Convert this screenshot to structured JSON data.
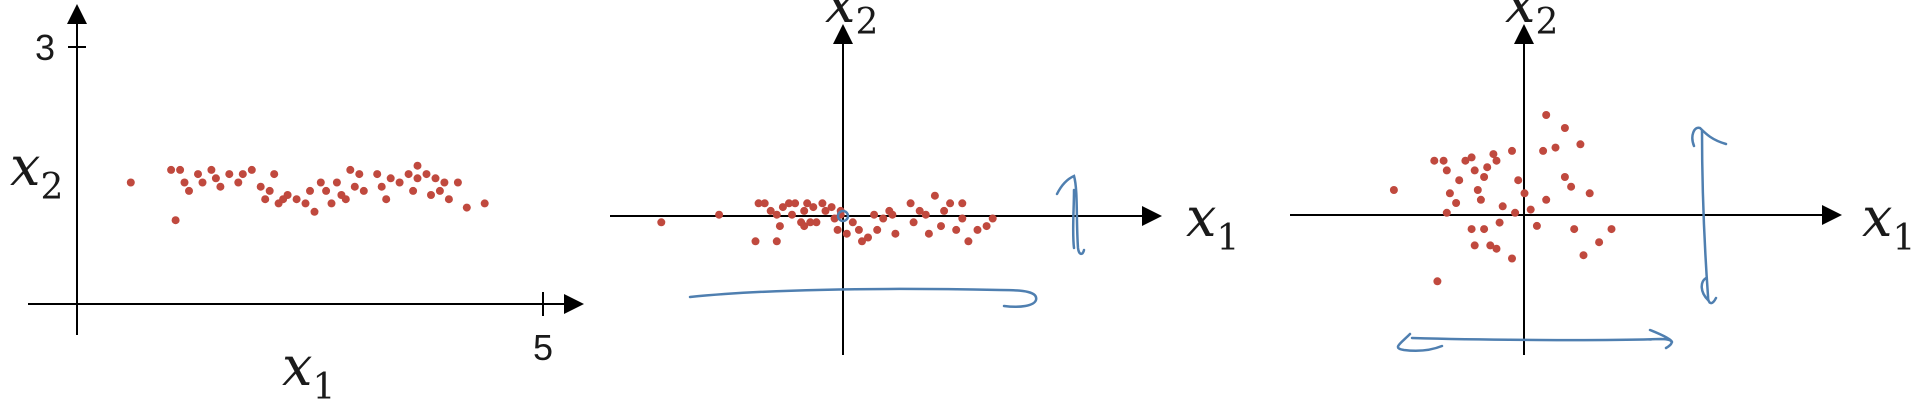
{
  "colors": {
    "point": "#c0493e",
    "axis": "#000000",
    "annotation": "#4f7fb0"
  },
  "chart_data": [
    {
      "type": "scatter",
      "title": "",
      "xlabel": {
        "base": "x",
        "sub": "1"
      },
      "ylabel": {
        "base": "x",
        "sub": "2"
      },
      "x_tick_labels": [
        "5"
      ],
      "y_tick_labels": [
        "3"
      ],
      "xlim": [
        0,
        5.2
      ],
      "ylim": [
        0,
        3.15
      ],
      "points": [
        [
          0.6,
          1.45
        ],
        [
          1.05,
          1.6
        ],
        [
          1.15,
          1.6
        ],
        [
          1.2,
          1.45
        ],
        [
          1.25,
          1.35
        ],
        [
          1.35,
          1.55
        ],
        [
          1.4,
          1.45
        ],
        [
          1.5,
          1.6
        ],
        [
          1.55,
          1.5
        ],
        [
          1.6,
          1.4
        ],
        [
          1.7,
          1.55
        ],
        [
          1.8,
          1.45
        ],
        [
          1.85,
          1.55
        ],
        [
          1.95,
          1.6
        ],
        [
          2.05,
          1.4
        ],
        [
          2.1,
          1.25
        ],
        [
          2.15,
          1.35
        ],
        [
          2.2,
          1.55
        ],
        [
          2.25,
          1.2
        ],
        [
          2.35,
          1.3
        ],
        [
          2.45,
          1.25
        ],
        [
          2.55,
          1.2
        ],
        [
          2.6,
          1.35
        ],
        [
          2.65,
          1.1
        ],
        [
          2.72,
          1.45
        ],
        [
          2.78,
          1.35
        ],
        [
          2.84,
          1.2
        ],
        [
          2.9,
          1.45
        ],
        [
          2.95,
          1.3
        ],
        [
          3.0,
          1.25
        ],
        [
          3.05,
          1.6
        ],
        [
          3.1,
          1.4
        ],
        [
          3.15,
          1.55
        ],
        [
          3.2,
          1.35
        ],
        [
          3.35,
          1.55
        ],
        [
          3.4,
          1.4
        ],
        [
          3.45,
          1.25
        ],
        [
          3.5,
          1.5
        ],
        [
          3.6,
          1.45
        ],
        [
          3.7,
          1.55
        ],
        [
          3.75,
          1.35
        ],
        [
          3.8,
          1.65
        ],
        [
          3.9,
          1.55
        ],
        [
          3.95,
          1.3
        ],
        [
          4.0,
          1.5
        ],
        [
          4.05,
          1.35
        ],
        [
          4.15,
          1.25
        ],
        [
          4.25,
          1.45
        ],
        [
          4.35,
          1.15
        ],
        [
          1.1,
          1.0
        ],
        [
          2.3,
          1.25
        ],
        [
          3.8,
          1.5
        ],
        [
          4.1,
          1.45
        ],
        [
          4.55,
          1.2
        ]
      ]
    },
    {
      "type": "scatter",
      "title": "",
      "xlabel": {
        "base": "x",
        "sub": "1"
      },
      "ylabel": {
        "base": "x",
        "sub": "2"
      },
      "x_tick_labels": [],
      "y_tick_labels": [],
      "xlim": [
        -3.2,
        4.2
      ],
      "ylim": [
        -1.6,
        2.35
      ],
      "points": [
        [
          -2.85,
          -0.05
        ],
        [
          -1.9,
          0.05
        ],
        [
          -1.25,
          0.2
        ],
        [
          -1.15,
          0.2
        ],
        [
          -1.05,
          0.1
        ],
        [
          -0.95,
          0.05
        ],
        [
          -0.9,
          -0.1
        ],
        [
          -0.85,
          0.15
        ],
        [
          -0.75,
          0.2
        ],
        [
          -0.7,
          0.05
        ],
        [
          -0.65,
          0.2
        ],
        [
          -0.55,
          -0.05
        ],
        [
          -0.5,
          0.1
        ],
        [
          -0.45,
          0.2
        ],
        [
          -0.35,
          0.15
        ],
        [
          -0.3,
          -0.05
        ],
        [
          -0.2,
          0.2
        ],
        [
          -0.15,
          0.1
        ],
        [
          -0.05,
          0.15
        ],
        [
          0.0,
          0.0
        ],
        [
          0.05,
          -0.15
        ],
        [
          0.1,
          0.1
        ],
        [
          0.2,
          -0.2
        ],
        [
          0.3,
          -0.05
        ],
        [
          0.4,
          -0.15
        ],
        [
          0.45,
          -0.3
        ],
        [
          0.55,
          -0.25
        ],
        [
          0.65,
          0.05
        ],
        [
          0.7,
          -0.15
        ],
        [
          0.8,
          0.0
        ],
        [
          0.9,
          0.1
        ],
        [
          1.0,
          -0.2
        ],
        [
          1.25,
          0.2
        ],
        [
          1.3,
          -0.05
        ],
        [
          1.4,
          0.1
        ],
        [
          1.5,
          0.05
        ],
        [
          1.55,
          -0.2
        ],
        [
          1.65,
          0.3
        ],
        [
          1.8,
          0.1
        ],
        [
          1.9,
          0.2
        ],
        [
          2.0,
          -0.15
        ],
        [
          2.1,
          0.0
        ],
        [
          2.2,
          -0.3
        ],
        [
          2.35,
          -0.15
        ],
        [
          2.5,
          -0.1
        ],
        [
          2.6,
          0.0
        ],
        [
          2.1,
          0.2
        ],
        [
          -1.3,
          -0.3
        ],
        [
          -0.95,
          -0.3
        ],
        [
          -0.4,
          -0.05
        ],
        [
          0.95,
          0.05
        ],
        [
          1.75,
          -0.1
        ],
        [
          -0.5,
          -0.1
        ],
        [
          0.1,
          0.05
        ]
      ]
    },
    {
      "type": "scatter",
      "title": "",
      "xlabel": {
        "base": "x",
        "sub": "1"
      },
      "ylabel": {
        "base": "x",
        "sub": "2"
      },
      "x_tick_labels": [],
      "y_tick_labels": [],
      "xlim": [
        -3.2,
        4.2
      ],
      "ylim": [
        -2.0,
        2.6
      ],
      "points": [
        [
          -1.85,
          0.3
        ],
        [
          -1.2,
          0.75
        ],
        [
          -1.05,
          0.75
        ],
        [
          -1.0,
          0.6
        ],
        [
          -0.95,
          0.25
        ],
        [
          -0.85,
          0.1
        ],
        [
          -0.8,
          0.45
        ],
        [
          -0.7,
          0.75
        ],
        [
          -0.6,
          0.8
        ],
        [
          -0.55,
          0.6
        ],
        [
          -0.5,
          0.3
        ],
        [
          -0.4,
          0.5
        ],
        [
          -0.35,
          0.65
        ],
        [
          -0.2,
          0.75
        ],
        [
          -0.1,
          0.05
        ],
        [
          0.05,
          0.9
        ],
        [
          0.15,
          0.45
        ],
        [
          0.25,
          0.25
        ],
        [
          0.35,
          0.0
        ],
        [
          0.45,
          -0.25
        ],
        [
          0.55,
          0.9
        ],
        [
          0.6,
          0.15
        ],
        [
          0.75,
          0.95
        ],
        [
          0.9,
          0.5
        ],
        [
          1.0,
          0.35
        ],
        [
          1.05,
          -0.3
        ],
        [
          1.15,
          1.0
        ],
        [
          1.2,
          -0.7
        ],
        [
          1.3,
          0.25
        ],
        [
          1.45,
          -0.5
        ],
        [
          1.65,
          -0.3
        ],
        [
          -0.6,
          -0.3
        ],
        [
          -0.55,
          -0.55
        ],
        [
          -0.4,
          -0.3
        ],
        [
          -0.3,
          -0.55
        ],
        [
          -0.2,
          -0.6
        ],
        [
          0.05,
          -0.75
        ],
        [
          -0.15,
          -0.2
        ],
        [
          -1.15,
          -1.1
        ],
        [
          -0.45,
          0.15
        ],
        [
          0.1,
          -0.05
        ],
        [
          0.9,
          1.25
        ],
        [
          0.6,
          1.45
        ],
        [
          -0.25,
          0.85
        ],
        [
          -1.0,
          -0.05
        ]
      ]
    }
  ]
}
